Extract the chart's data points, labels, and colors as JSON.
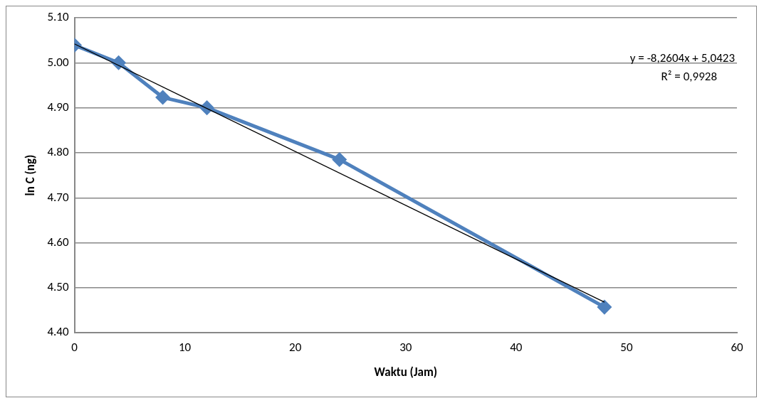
{
  "chart_data": {
    "type": "line",
    "xlabel": "Waktu (Jam)",
    "ylabel": "ln C (ng)",
    "x": [
      0,
      4,
      8,
      12,
      24,
      48
    ],
    "series": [
      {
        "type": "line",
        "color": "#4f81bd",
        "values": [
          5.039,
          5.0,
          4.923,
          4.9,
          4.785,
          4.457
        ],
        "marker": "diamond"
      },
      {
        "type": "line",
        "color": "#000000",
        "x": [
          0,
          48
        ],
        "values": [
          5.042,
          4.468
        ],
        "marker": "none"
      }
    ],
    "xlim": [
      0,
      60
    ],
    "xticks": [
      0,
      10,
      20,
      30,
      40,
      50,
      60
    ],
    "ylim": [
      4.4,
      5.1
    ],
    "yticks": [
      {
        "value": 4.4,
        "label": "4.40"
      },
      {
        "value": 4.5,
        "label": "4.50"
      },
      {
        "value": 4.6,
        "label": "4.60"
      },
      {
        "value": 4.7,
        "label": "4.70"
      },
      {
        "value": 4.8,
        "label": "4.80"
      },
      {
        "value": 4.9,
        "label": "4.90"
      },
      {
        "value": 5.0,
        "label": "5.00"
      },
      {
        "value": 5.1,
        "label": "5.10"
      }
    ],
    "grid": "y",
    "legend": false,
    "annotations": [
      "y = -8,2604x + 5,0423",
      "R² = 0,9928"
    ]
  }
}
